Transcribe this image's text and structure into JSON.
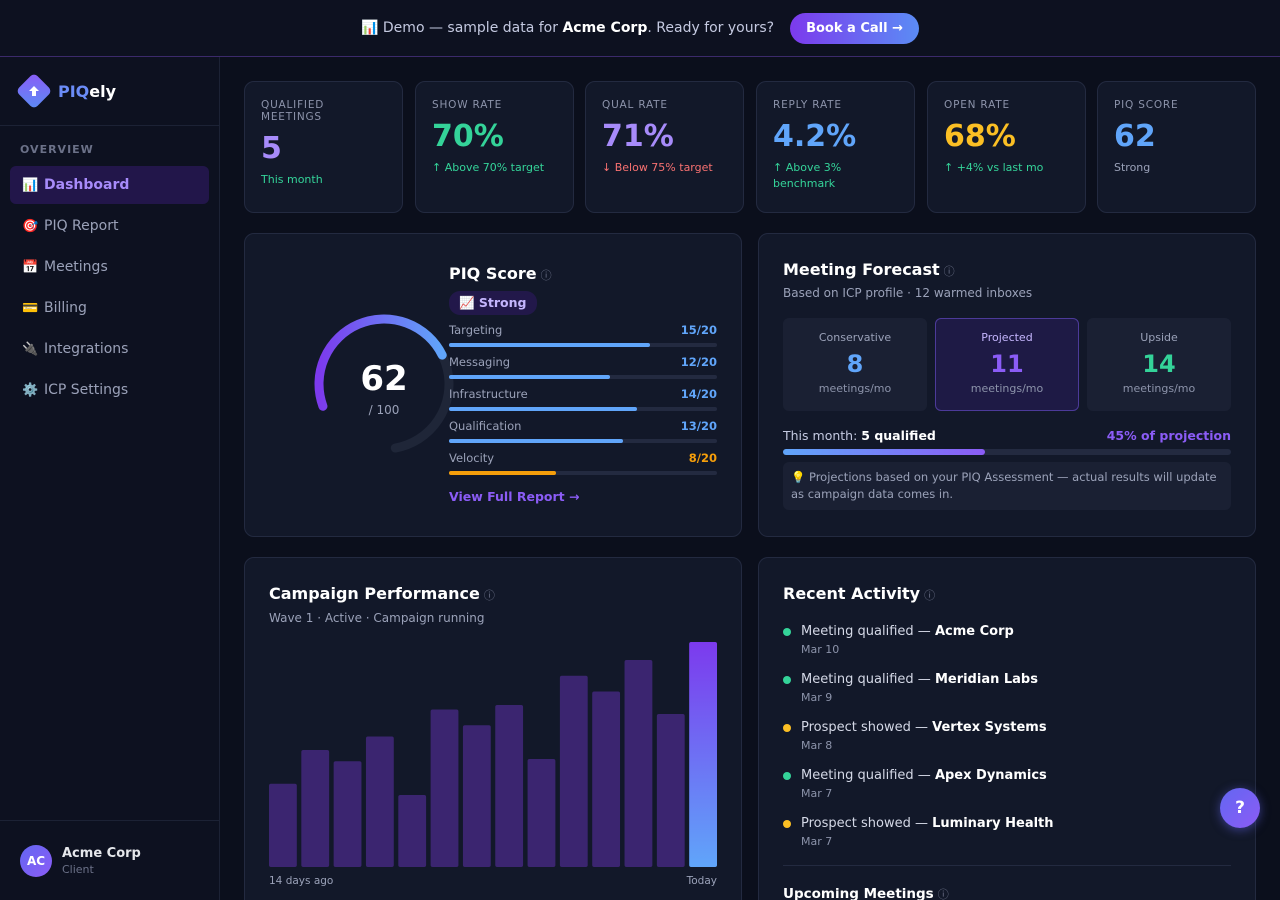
{
  "banner": {
    "icon": "📊",
    "text_before": "Demo — sample data for ",
    "company": "Acme Corp",
    "text_after": ". Ready for yours?",
    "cta": "Book a Call →"
  },
  "brand": {
    "name_part1": "PIQ",
    "name_part2": "ely"
  },
  "sidebar": {
    "section": "OVERVIEW",
    "items": [
      {
        "icon": "📊",
        "label": "Dashboard"
      },
      {
        "icon": "🎯",
        "label": "PIQ Report"
      },
      {
        "icon": "📅",
        "label": "Meetings"
      },
      {
        "icon": "💳",
        "label": "Billing"
      },
      {
        "icon": "🔌",
        "label": "Integrations"
      },
      {
        "icon": "⚙️",
        "label": "ICP Settings"
      }
    ],
    "user": {
      "initials": "AC",
      "name": "Acme Corp",
      "role": "Client"
    }
  },
  "kpis": [
    {
      "label": "QUALIFIED MEETINGS",
      "value": "5",
      "sub": "This month",
      "color": "#a78bfa",
      "sub_color": "#34d399"
    },
    {
      "label": "SHOW RATE",
      "value": "70%",
      "sub": "↑ Above 70% target",
      "color": "#34d399",
      "sub_color": "#34d399"
    },
    {
      "label": "QUAL RATE",
      "value": "71%",
      "sub": "↓ Below 75% target",
      "color": "#a78bfa",
      "sub_color": "#f87171"
    },
    {
      "label": "REPLY RATE",
      "value": "4.2%",
      "sub": "↑ Above 3% benchmark",
      "color": "#60a5fa",
      "sub_color": "#34d399"
    },
    {
      "label": "OPEN RATE",
      "value": "68%",
      "sub": "↑ +4% vs last mo",
      "color": "#fbbf24",
      "sub_color": "#34d399"
    },
    {
      "label": "PIQ SCORE",
      "value": "62",
      "sub": "Strong",
      "color": "#60a5fa",
      "sub_color": "#9aa1b8"
    }
  ],
  "piq": {
    "title": "PIQ Score",
    "info_icon": "ⓘ",
    "score": "62",
    "out_of": "/ 100",
    "score_fraction": 0.62,
    "badge": "📈 Strong",
    "metrics": [
      {
        "label": "Targeting",
        "score": "15/20",
        "fraction": 0.75,
        "color": "#60a5fa"
      },
      {
        "label": "Messaging",
        "score": "12/20",
        "fraction": 0.6,
        "color": "#60a5fa"
      },
      {
        "label": "Infrastructure",
        "score": "14/20",
        "fraction": 0.7,
        "color": "#60a5fa"
      },
      {
        "label": "Qualification",
        "score": "13/20",
        "fraction": 0.65,
        "color": "#60a5fa"
      },
      {
        "label": "Velocity",
        "score": "8/20",
        "fraction": 0.4,
        "color": "#f59e0b"
      }
    ],
    "link": "View Full Report →"
  },
  "forecast": {
    "title": "Meeting Forecast",
    "info_icon": "ⓘ",
    "subtitle": "Based on ICP profile · 12 warmed inboxes",
    "boxes": [
      {
        "label": "Conservative",
        "value": "8",
        "unit": "meetings/mo",
        "color": "#60a5fa"
      },
      {
        "label": "Projected",
        "value": "11",
        "unit": "meetings/mo",
        "color": "#8b5cf6"
      },
      {
        "label": "Upside",
        "value": "14",
        "unit": "meetings/mo",
        "color": "#34d399"
      }
    ],
    "progress_label": "This month: ",
    "progress_value": "5 qualified",
    "progress_pct_text": "45% of projection",
    "progress_fraction": 0.45,
    "note": "💡 Projections based on your PIQ Assessment — actual results will update as campaign data comes in."
  },
  "campaign": {
    "title": "Campaign Performance",
    "info_icon": "ⓘ",
    "subtitle": "Wave 1 · Active · Campaign running",
    "x_start": "14 days ago",
    "x_end": "Today"
  },
  "chart_data": {
    "type": "bar",
    "title": "Campaign Performance",
    "categories": [
      "",
      "",
      "",
      "",
      "",
      "",
      "",
      "",
      "",
      "",
      "",
      "",
      "",
      ""
    ],
    "values": [
      37,
      52,
      47,
      58,
      32,
      70,
      63,
      72,
      48,
      85,
      78,
      92,
      68,
      100
    ],
    "ylim": [
      0,
      100
    ],
    "xlabel": "",
    "ylabel": "",
    "colors": {
      "bar": "#3b2570",
      "last_bar_top": "#7c3aed",
      "last_bar_bottom": "#60a5fa"
    }
  },
  "activity": {
    "title": "Recent Activity",
    "info_icon": "ⓘ",
    "items": [
      {
        "prefix": "Meeting qualified — ",
        "company": "Acme Corp",
        "date": "Mar 10",
        "color": "#34d399"
      },
      {
        "prefix": "Meeting qualified — ",
        "company": "Meridian Labs",
        "date": "Mar 9",
        "color": "#34d399"
      },
      {
        "prefix": "Prospect showed — ",
        "company": "Vertex Systems",
        "date": "Mar 8",
        "color": "#fbbf24"
      },
      {
        "prefix": "Meeting qualified — ",
        "company": "Apex Dynamics",
        "date": "Mar 7",
        "color": "#34d399"
      },
      {
        "prefix": "Prospect showed — ",
        "company": "Luminary Health",
        "date": "Mar 7",
        "color": "#fbbf24"
      }
    ],
    "upcoming_title": "Upcoming Meetings"
  },
  "help": {
    "label": "?"
  }
}
